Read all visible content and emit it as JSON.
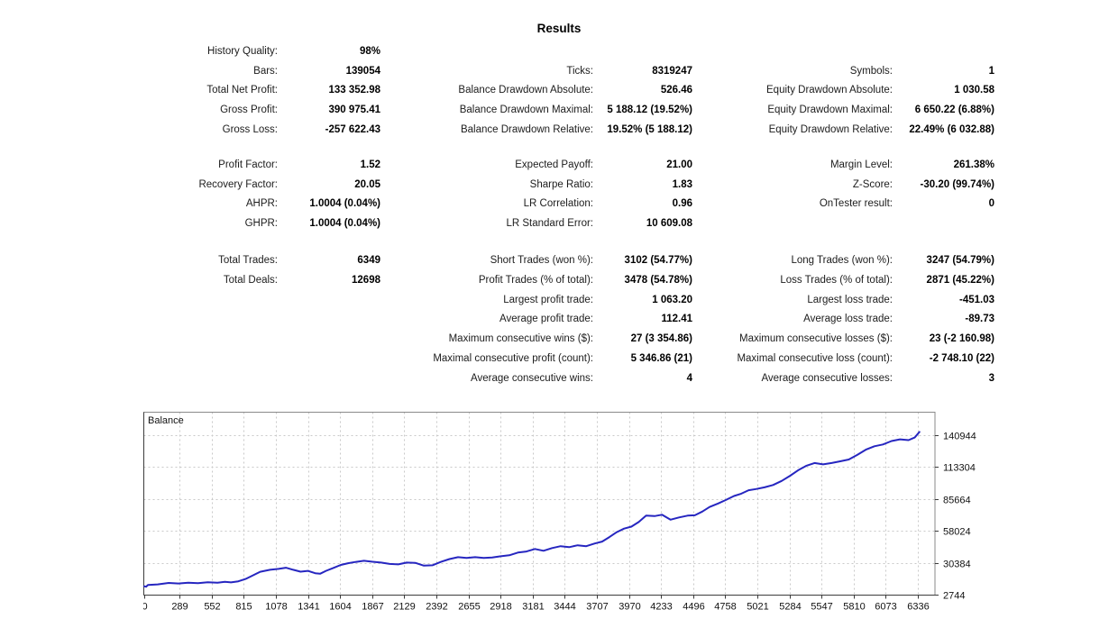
{
  "title": "Results",
  "colors": {
    "balance_line": "#2626c0",
    "grid": "#c9c9c9",
    "frame": "#8a8a8a",
    "axis": "#3c3c3c",
    "text": "#111111"
  },
  "stats": {
    "sections": [
      {
        "rows": [
          [
            {
              "label": "History Quality:",
              "value": "98%"
            },
            null,
            null
          ],
          [
            {
              "label": "Bars:",
              "value": "139054"
            },
            {
              "label": "Ticks:",
              "value": "8319247"
            },
            {
              "label": "Symbols:",
              "value": "1"
            }
          ],
          [
            {
              "label": "Total Net Profit:",
              "value": "133 352.98"
            },
            {
              "label": "Balance Drawdown Absolute:",
              "value": "526.46"
            },
            {
              "label": "Equity Drawdown Absolute:",
              "value": "1 030.58"
            }
          ],
          [
            {
              "label": "Gross Profit:",
              "value": "390 975.41"
            },
            {
              "label": "Balance Drawdown Maximal:",
              "value": "5 188.12 (19.52%)"
            },
            {
              "label": "Equity Drawdown Maximal:",
              "value": "6 650.22 (6.88%)"
            }
          ],
          [
            {
              "label": "Gross Loss:",
              "value": "-257 622.43"
            },
            {
              "label": "Balance Drawdown Relative:",
              "value": "19.52% (5 188.12)"
            },
            {
              "label": "Equity Drawdown Relative:",
              "value": "22.49% (6 032.88)"
            }
          ]
        ]
      },
      {
        "rows": [
          [
            {
              "label": "Profit Factor:",
              "value": "1.52"
            },
            {
              "label": "Expected Payoff:",
              "value": "21.00"
            },
            {
              "label": "Margin Level:",
              "value": "261.38%"
            }
          ],
          [
            {
              "label": "Recovery Factor:",
              "value": "20.05"
            },
            {
              "label": "Sharpe Ratio:",
              "value": "1.83"
            },
            {
              "label": "Z-Score:",
              "value": "-30.20 (99.74%)"
            }
          ],
          [
            {
              "label": "AHPR:",
              "value": "1.0004 (0.04%)"
            },
            {
              "label": "LR Correlation:",
              "value": "0.96"
            },
            {
              "label": "OnTester result:",
              "value": "0"
            }
          ],
          [
            {
              "label": "GHPR:",
              "value": "1.0004 (0.04%)"
            },
            {
              "label": "LR Standard Error:",
              "value": "10 609.08"
            },
            null
          ]
        ]
      },
      {
        "rows": [
          [
            {
              "label": "Total Trades:",
              "value": "6349"
            },
            {
              "label": "Short Trades (won %):",
              "value": "3102 (54.77%)"
            },
            {
              "label": "Long Trades (won %):",
              "value": "3247 (54.79%)"
            }
          ],
          [
            {
              "label": "Total Deals:",
              "value": "12698"
            },
            {
              "label": "Profit Trades (% of total):",
              "value": "3478 (54.78%)"
            },
            {
              "label": "Loss Trades (% of total):",
              "value": "2871 (45.22%)"
            }
          ],
          [
            null,
            {
              "label": "Largest profit trade:",
              "value": "1 063.20"
            },
            {
              "label": "Largest loss trade:",
              "value": "-451.03"
            }
          ],
          [
            null,
            {
              "label": "Average profit trade:",
              "value": "112.41"
            },
            {
              "label": "Average loss trade:",
              "value": "-89.73"
            }
          ],
          [
            null,
            {
              "label": "Maximum consecutive wins ($):",
              "value": "27 (3 354.86)"
            },
            {
              "label": "Maximum consecutive losses ($):",
              "value": "23 (-2 160.98)"
            }
          ],
          [
            null,
            {
              "label": "Maximal consecutive profit (count):",
              "value": "5 346.86 (21)"
            },
            {
              "label": "Maximal consecutive loss (count):",
              "value": "-2 748.10 (22)"
            }
          ],
          [
            null,
            {
              "label": "Average consecutive wins:",
              "value": "4"
            },
            {
              "label": "Average consecutive losses:",
              "value": "3"
            }
          ]
        ]
      }
    ]
  },
  "chart_data": {
    "type": "line",
    "title": "Balance",
    "xlabel": "",
    "ylabel": "",
    "legend_label": "Balance",
    "grid": true,
    "x_ticks": [
      0,
      289,
      552,
      815,
      1078,
      1341,
      1604,
      1867,
      2129,
      2392,
      2655,
      2918,
      3181,
      3444,
      3707,
      3970,
      4233,
      4496,
      4758,
      5021,
      5284,
      5547,
      5810,
      6073,
      6336
    ],
    "y_ticks": [
      2744,
      30384,
      58024,
      85664,
      113304,
      140944
    ],
    "x_range": [
      0,
      6470
    ],
    "y_range": [
      2744,
      160400
    ],
    "series": [
      {
        "name": "Balance",
        "color": "#2626c0",
        "points": [
          [
            0,
            10000
          ],
          [
            15,
            9600
          ],
          [
            30,
            11100
          ],
          [
            110,
            11600
          ],
          [
            200,
            12900
          ],
          [
            280,
            12400
          ],
          [
            360,
            13100
          ],
          [
            440,
            12700
          ],
          [
            520,
            13400
          ],
          [
            600,
            13100
          ],
          [
            660,
            13900
          ],
          [
            710,
            13300
          ],
          [
            770,
            14300
          ],
          [
            830,
            16300
          ],
          [
            890,
            19400
          ],
          [
            950,
            22500
          ],
          [
            1030,
            24200
          ],
          [
            1100,
            25000
          ],
          [
            1160,
            26000
          ],
          [
            1220,
            24200
          ],
          [
            1280,
            22600
          ],
          [
            1340,
            23300
          ],
          [
            1400,
            21300
          ],
          [
            1440,
            20800
          ],
          [
            1490,
            23400
          ],
          [
            1550,
            25900
          ],
          [
            1610,
            28400
          ],
          [
            1670,
            29900
          ],
          [
            1730,
            31000
          ],
          [
            1800,
            32000
          ],
          [
            1870,
            31200
          ],
          [
            1940,
            30500
          ],
          [
            2010,
            29300
          ],
          [
            2080,
            28900
          ],
          [
            2150,
            30500
          ],
          [
            2220,
            30200
          ],
          [
            2290,
            27800
          ],
          [
            2360,
            28100
          ],
          [
            2430,
            31100
          ],
          [
            2500,
            33500
          ],
          [
            2570,
            35100
          ],
          [
            2640,
            34400
          ],
          [
            2710,
            35100
          ],
          [
            2780,
            34400
          ],
          [
            2850,
            34800
          ],
          [
            2920,
            35900
          ],
          [
            2990,
            36800
          ],
          [
            3060,
            39100
          ],
          [
            3130,
            40000
          ],
          [
            3200,
            42200
          ],
          [
            3270,
            40700
          ],
          [
            3340,
            43000
          ],
          [
            3410,
            44600
          ],
          [
            3480,
            43800
          ],
          [
            3550,
            45400
          ],
          [
            3620,
            44600
          ],
          [
            3690,
            47000
          ],
          [
            3750,
            48600
          ],
          [
            3810,
            52500
          ],
          [
            3870,
            56800
          ],
          [
            3930,
            59800
          ],
          [
            3990,
            61500
          ],
          [
            4050,
            65500
          ],
          [
            4110,
            71000
          ],
          [
            4180,
            70600
          ],
          [
            4240,
            71800
          ],
          [
            4310,
            67500
          ],
          [
            4380,
            69500
          ],
          [
            4450,
            71000
          ],
          [
            4510,
            71300
          ],
          [
            4570,
            74500
          ],
          [
            4630,
            78500
          ],
          [
            4700,
            81500
          ],
          [
            4760,
            84400
          ],
          [
            4830,
            88000
          ],
          [
            4890,
            90000
          ],
          [
            4950,
            93000
          ],
          [
            5010,
            94000
          ],
          [
            5080,
            95500
          ],
          [
            5150,
            97500
          ],
          [
            5220,
            101000
          ],
          [
            5290,
            105500
          ],
          [
            5360,
            110500
          ],
          [
            5420,
            114000
          ],
          [
            5490,
            116500
          ],
          [
            5560,
            115300
          ],
          [
            5630,
            116500
          ],
          [
            5700,
            118000
          ],
          [
            5770,
            119500
          ],
          [
            5840,
            123500
          ],
          [
            5910,
            128000
          ],
          [
            5980,
            131000
          ],
          [
            6050,
            132500
          ],
          [
            6120,
            135500
          ],
          [
            6190,
            137000
          ],
          [
            6260,
            136300
          ],
          [
            6310,
            138500
          ],
          [
            6349,
            143353
          ]
        ]
      }
    ]
  }
}
